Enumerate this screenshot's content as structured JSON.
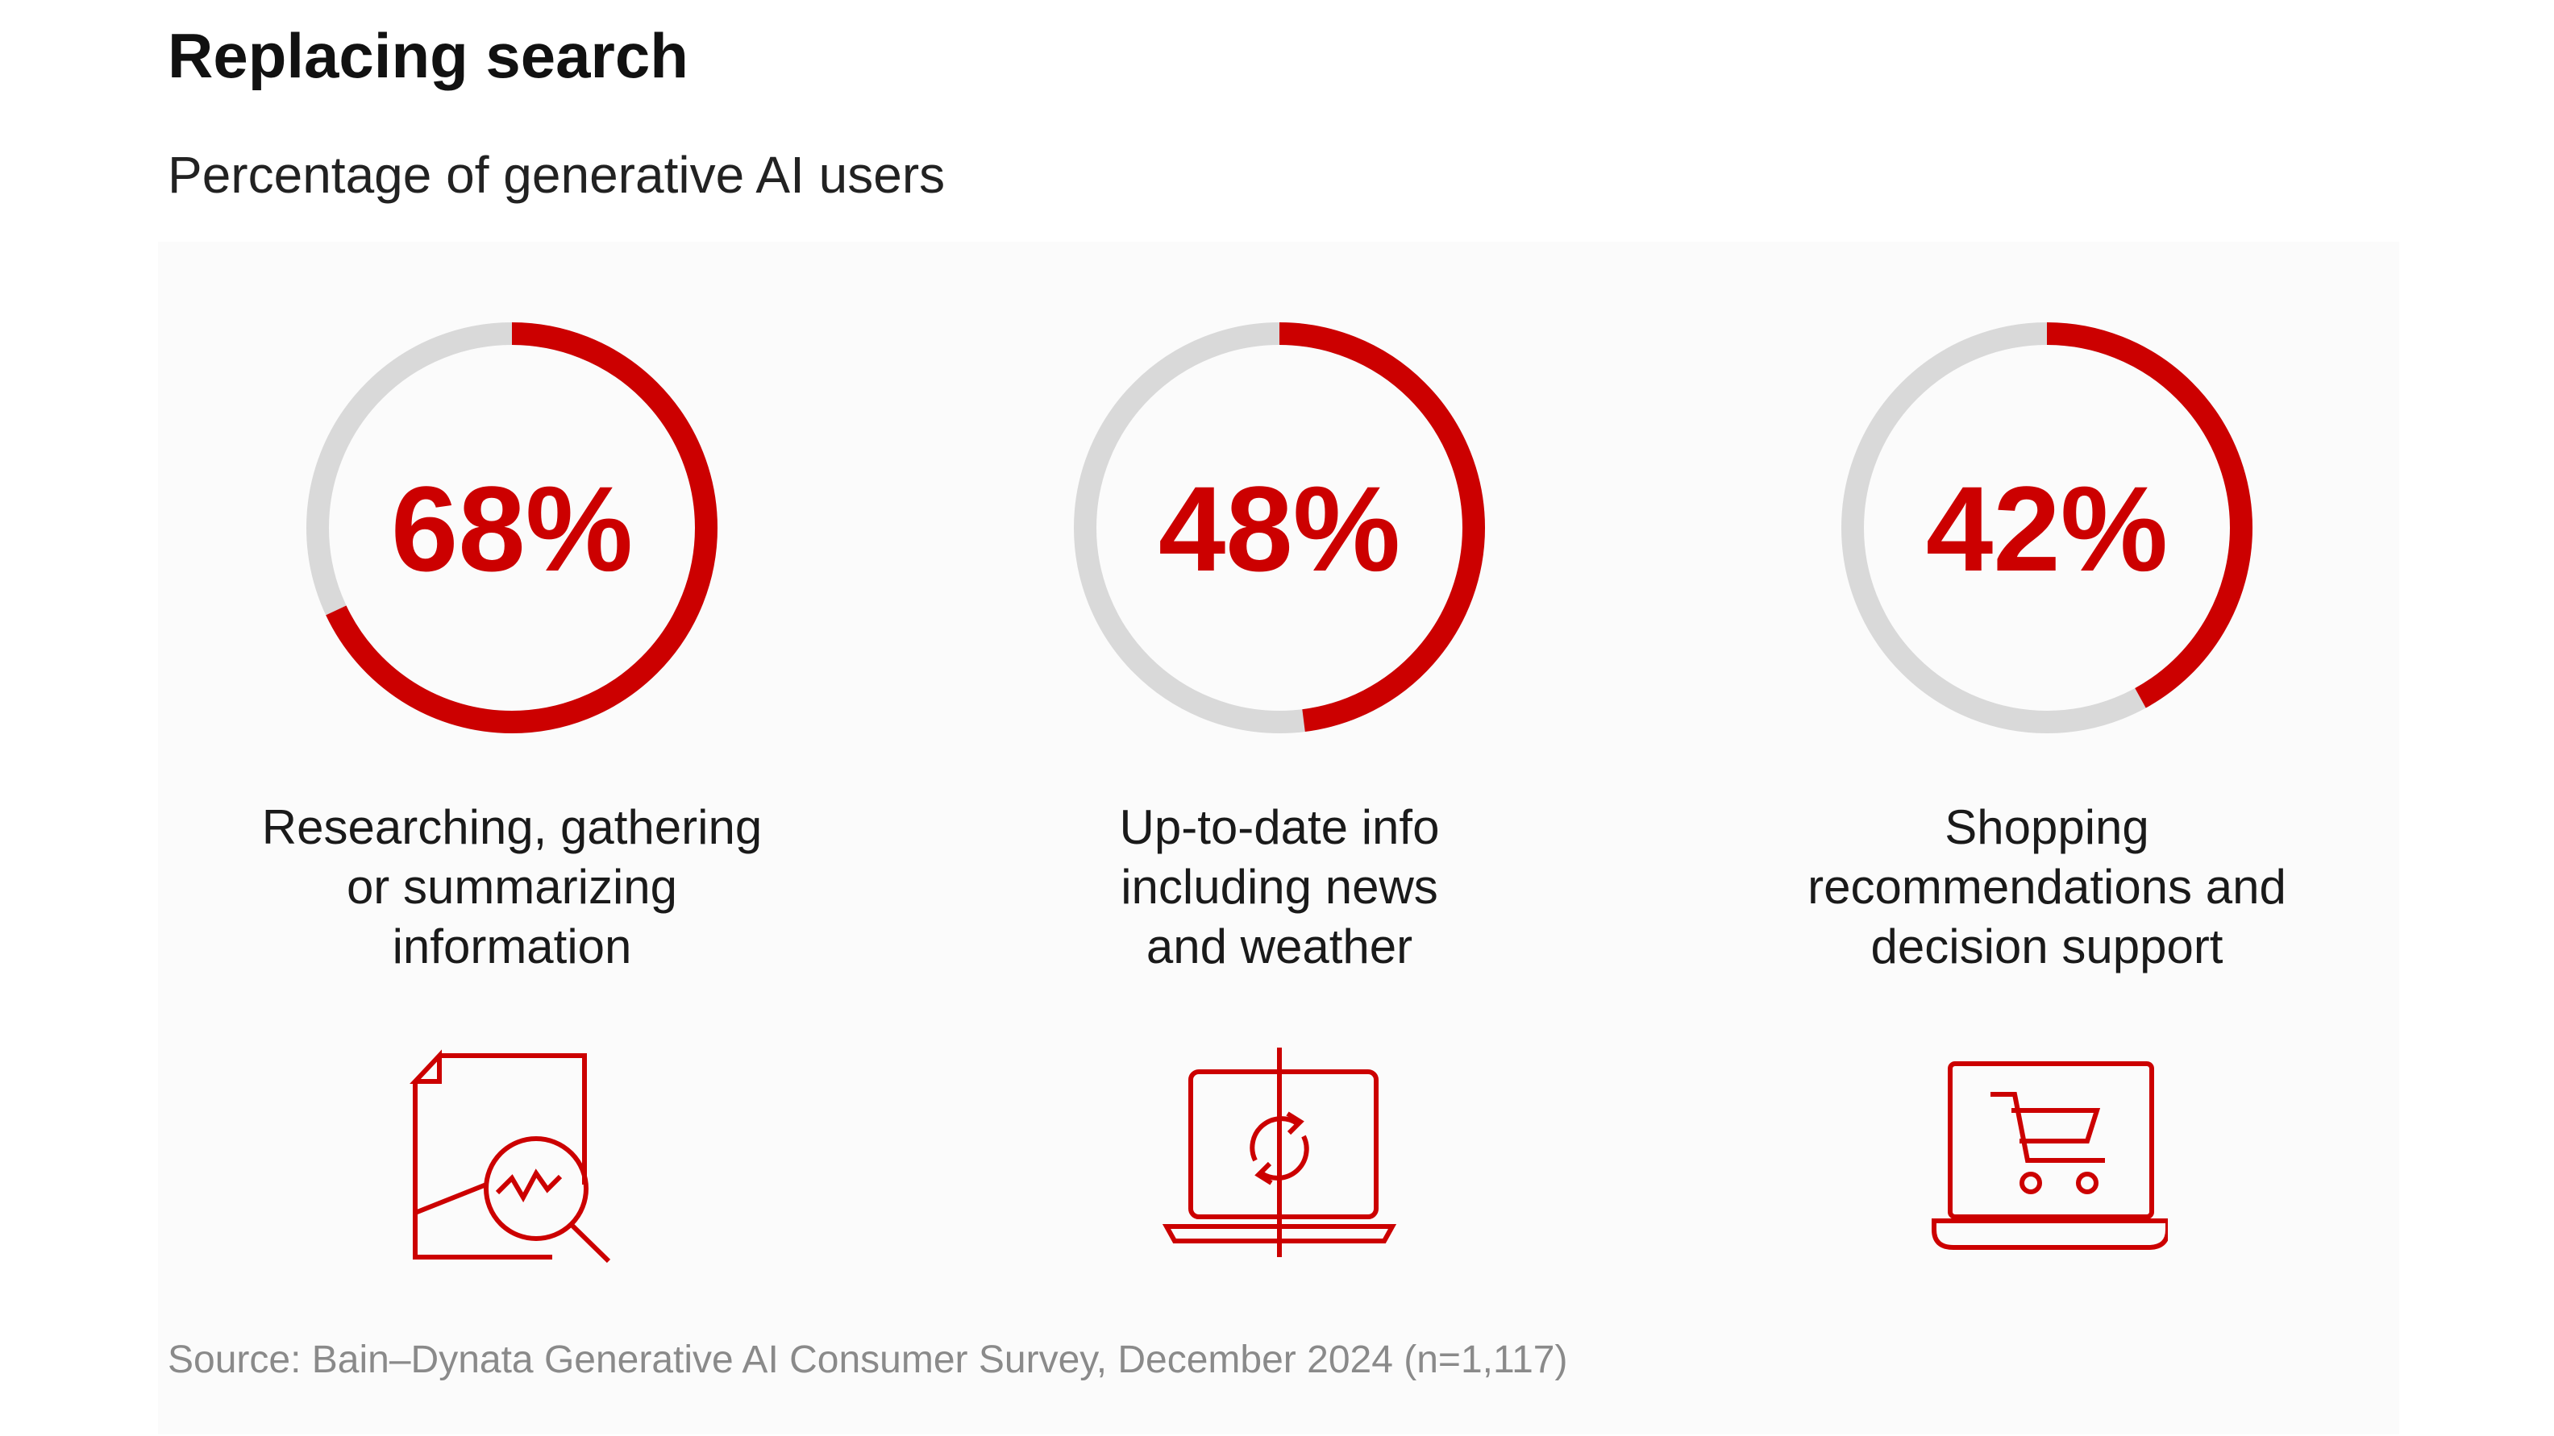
{
  "header": {
    "title": "Replacing search",
    "subtitle": "Percentage of generative AI users"
  },
  "footer": {
    "source": "Source: Bain–Dynata Generative AI Consumer Survey, December 2024 (n=1,117)"
  },
  "colors": {
    "accent": "#cc0000",
    "track": "#d9d9d9"
  },
  "chart_data": {
    "type": "pie",
    "title": "Replacing search",
    "subtitle": "Percentage of generative AI users",
    "unit": "%",
    "items": [
      {
        "value": 68,
        "value_label": "68%",
        "label_lines": [
          "Researching, gathering",
          "or summarizing",
          "information"
        ],
        "icon": "document-search-chart-icon"
      },
      {
        "value": 48,
        "value_label": "48%",
        "label_lines": [
          "Up-to-date info",
          "including news",
          "and weather"
        ],
        "icon": "laptop-refresh-icon"
      },
      {
        "value": 42,
        "value_label": "42%",
        "label_lines": [
          "Shopping",
          "recommendations and",
          "decision support"
        ],
        "icon": "laptop-shopping-cart-icon"
      }
    ]
  }
}
